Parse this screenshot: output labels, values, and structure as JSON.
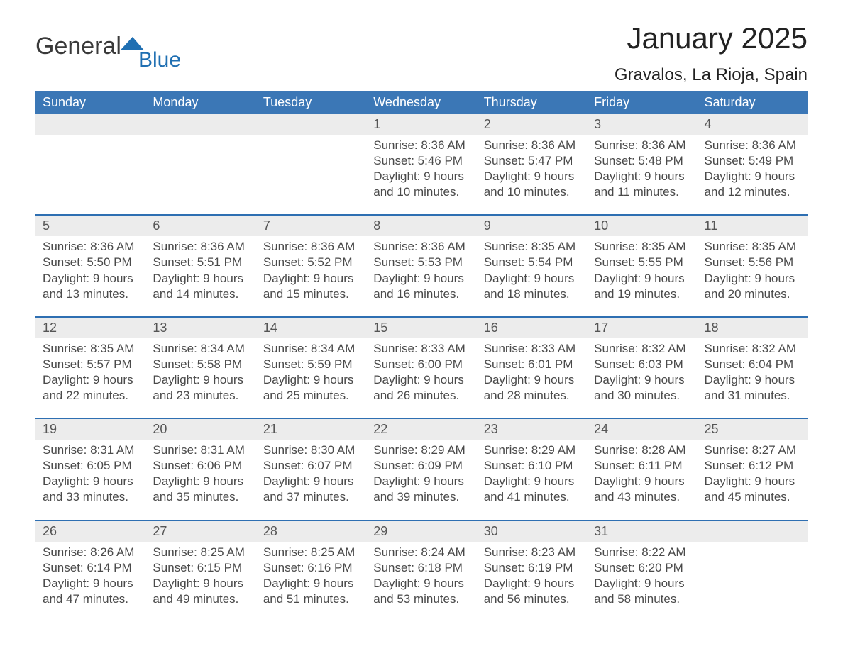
{
  "logo": {
    "word1": "General",
    "word2": "Blue"
  },
  "title": "January 2025",
  "subtitle": "Gravalos, La Rioja, Spain",
  "dayHeaders": [
    "Sunday",
    "Monday",
    "Tuesday",
    "Wednesday",
    "Thursday",
    "Friday",
    "Saturday"
  ],
  "weeks": [
    [
      null,
      null,
      null,
      {
        "n": "1",
        "sunrise": "8:36 AM",
        "sunset": "5:46 PM",
        "dl1": "Daylight: 9 hours",
        "dl2": "and 10 minutes."
      },
      {
        "n": "2",
        "sunrise": "8:36 AM",
        "sunset": "5:47 PM",
        "dl1": "Daylight: 9 hours",
        "dl2": "and 10 minutes."
      },
      {
        "n": "3",
        "sunrise": "8:36 AM",
        "sunset": "5:48 PM",
        "dl1": "Daylight: 9 hours",
        "dl2": "and 11 minutes."
      },
      {
        "n": "4",
        "sunrise": "8:36 AM",
        "sunset": "5:49 PM",
        "dl1": "Daylight: 9 hours",
        "dl2": "and 12 minutes."
      }
    ],
    [
      {
        "n": "5",
        "sunrise": "8:36 AM",
        "sunset": "5:50 PM",
        "dl1": "Daylight: 9 hours",
        "dl2": "and 13 minutes."
      },
      {
        "n": "6",
        "sunrise": "8:36 AM",
        "sunset": "5:51 PM",
        "dl1": "Daylight: 9 hours",
        "dl2": "and 14 minutes."
      },
      {
        "n": "7",
        "sunrise": "8:36 AM",
        "sunset": "5:52 PM",
        "dl1": "Daylight: 9 hours",
        "dl2": "and 15 minutes."
      },
      {
        "n": "8",
        "sunrise": "8:36 AM",
        "sunset": "5:53 PM",
        "dl1": "Daylight: 9 hours",
        "dl2": "and 16 minutes."
      },
      {
        "n": "9",
        "sunrise": "8:35 AM",
        "sunset": "5:54 PM",
        "dl1": "Daylight: 9 hours",
        "dl2": "and 18 minutes."
      },
      {
        "n": "10",
        "sunrise": "8:35 AM",
        "sunset": "5:55 PM",
        "dl1": "Daylight: 9 hours",
        "dl2": "and 19 minutes."
      },
      {
        "n": "11",
        "sunrise": "8:35 AM",
        "sunset": "5:56 PM",
        "dl1": "Daylight: 9 hours",
        "dl2": "and 20 minutes."
      }
    ],
    [
      {
        "n": "12",
        "sunrise": "8:35 AM",
        "sunset": "5:57 PM",
        "dl1": "Daylight: 9 hours",
        "dl2": "and 22 minutes."
      },
      {
        "n": "13",
        "sunrise": "8:34 AM",
        "sunset": "5:58 PM",
        "dl1": "Daylight: 9 hours",
        "dl2": "and 23 minutes."
      },
      {
        "n": "14",
        "sunrise": "8:34 AM",
        "sunset": "5:59 PM",
        "dl1": "Daylight: 9 hours",
        "dl2": "and 25 minutes."
      },
      {
        "n": "15",
        "sunrise": "8:33 AM",
        "sunset": "6:00 PM",
        "dl1": "Daylight: 9 hours",
        "dl2": "and 26 minutes."
      },
      {
        "n": "16",
        "sunrise": "8:33 AM",
        "sunset": "6:01 PM",
        "dl1": "Daylight: 9 hours",
        "dl2": "and 28 minutes."
      },
      {
        "n": "17",
        "sunrise": "8:32 AM",
        "sunset": "6:03 PM",
        "dl1": "Daylight: 9 hours",
        "dl2": "and 30 minutes."
      },
      {
        "n": "18",
        "sunrise": "8:32 AM",
        "sunset": "6:04 PM",
        "dl1": "Daylight: 9 hours",
        "dl2": "and 31 minutes."
      }
    ],
    [
      {
        "n": "19",
        "sunrise": "8:31 AM",
        "sunset": "6:05 PM",
        "dl1": "Daylight: 9 hours",
        "dl2": "and 33 minutes."
      },
      {
        "n": "20",
        "sunrise": "8:31 AM",
        "sunset": "6:06 PM",
        "dl1": "Daylight: 9 hours",
        "dl2": "and 35 minutes."
      },
      {
        "n": "21",
        "sunrise": "8:30 AM",
        "sunset": "6:07 PM",
        "dl1": "Daylight: 9 hours",
        "dl2": "and 37 minutes."
      },
      {
        "n": "22",
        "sunrise": "8:29 AM",
        "sunset": "6:09 PM",
        "dl1": "Daylight: 9 hours",
        "dl2": "and 39 minutes."
      },
      {
        "n": "23",
        "sunrise": "8:29 AM",
        "sunset": "6:10 PM",
        "dl1": "Daylight: 9 hours",
        "dl2": "and 41 minutes."
      },
      {
        "n": "24",
        "sunrise": "8:28 AM",
        "sunset": "6:11 PM",
        "dl1": "Daylight: 9 hours",
        "dl2": "and 43 minutes."
      },
      {
        "n": "25",
        "sunrise": "8:27 AM",
        "sunset": "6:12 PM",
        "dl1": "Daylight: 9 hours",
        "dl2": "and 45 minutes."
      }
    ],
    [
      {
        "n": "26",
        "sunrise": "8:26 AM",
        "sunset": "6:14 PM",
        "dl1": "Daylight: 9 hours",
        "dl2": "and 47 minutes."
      },
      {
        "n": "27",
        "sunrise": "8:25 AM",
        "sunset": "6:15 PM",
        "dl1": "Daylight: 9 hours",
        "dl2": "and 49 minutes."
      },
      {
        "n": "28",
        "sunrise": "8:25 AM",
        "sunset": "6:16 PM",
        "dl1": "Daylight: 9 hours",
        "dl2": "and 51 minutes."
      },
      {
        "n": "29",
        "sunrise": "8:24 AM",
        "sunset": "6:18 PM",
        "dl1": "Daylight: 9 hours",
        "dl2": "and 53 minutes."
      },
      {
        "n": "30",
        "sunrise": "8:23 AM",
        "sunset": "6:19 PM",
        "dl1": "Daylight: 9 hours",
        "dl2": "and 56 minutes."
      },
      {
        "n": "31",
        "sunrise": "8:22 AM",
        "sunset": "6:20 PM",
        "dl1": "Daylight: 9 hours",
        "dl2": "and 58 minutes."
      },
      null
    ]
  ],
  "labels": {
    "sunrise": "Sunrise: ",
    "sunset": "Sunset: "
  },
  "colors": {
    "header_blue": "#3b77b6",
    "accent_blue": "#2e6fb2",
    "row_gray": "#ececec",
    "background": "#ffffff",
    "text_dark": "#333333",
    "logo_blue": "#1f6fb2"
  },
  "typography": {
    "title_pt": 42,
    "subtitle_pt": 24,
    "header_pt": 18,
    "body_pt": 17
  }
}
